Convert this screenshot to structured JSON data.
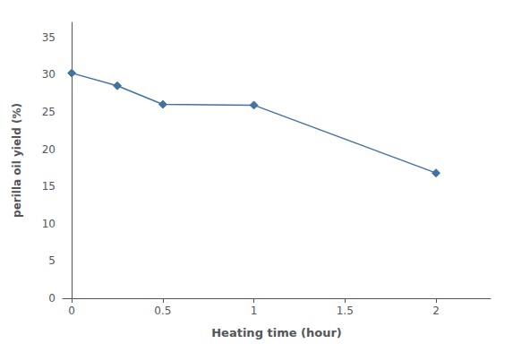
{
  "chart_data": {
    "type": "line",
    "x": [
      0,
      0.25,
      0.5,
      1,
      2
    ],
    "values": [
      30.2,
      28.5,
      26.0,
      25.9,
      16.8
    ],
    "color": "#4472A0",
    "marker": "diamond",
    "xlabel": "Heating time (hour)",
    "ylabel": "perilla oil yield (%)",
    "xlim": [
      -0.05,
      2.3
    ],
    "ylim": [
      0,
      37
    ],
    "xticks": [
      0,
      0.5,
      1,
      1.5,
      2
    ],
    "yticks": [
      0,
      5,
      10,
      15,
      20,
      25,
      30,
      35
    ],
    "grid": false
  }
}
